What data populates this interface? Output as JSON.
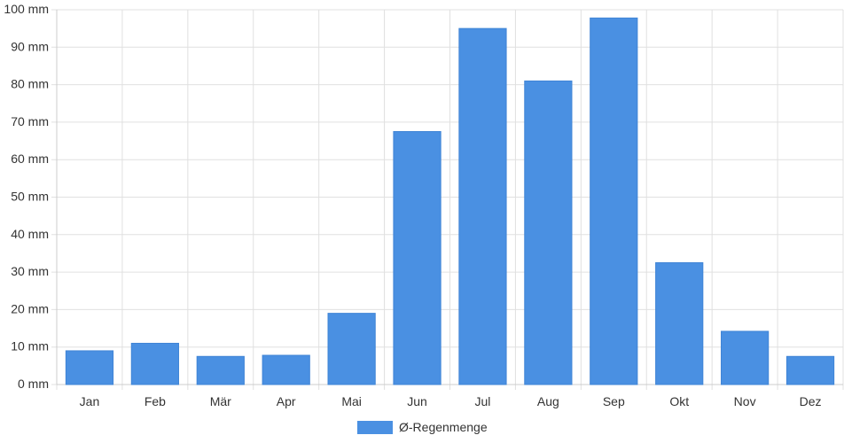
{
  "chart_data": {
    "type": "bar",
    "categories": [
      "Jan",
      "Feb",
      "Mär",
      "Apr",
      "Mai",
      "Jun",
      "Jul",
      "Aug",
      "Sep",
      "Okt",
      "Nov",
      "Dez"
    ],
    "series": [
      {
        "name": "Ø-Regenmenge",
        "values": [
          9,
          11,
          7.5,
          7.8,
          19,
          67.5,
          95,
          81,
          97.8,
          32.5,
          14.2,
          7.5
        ],
        "color": "#4a90e2"
      }
    ],
    "ylim": [
      0,
      100
    ],
    "y_ticks": [
      "0 mm",
      "10 mm",
      "20 mm",
      "30 mm",
      "40 mm",
      "50 mm",
      "60 mm",
      "70 mm",
      "80 mm",
      "90 mm",
      "100 mm"
    ],
    "y_tick_values": [
      0,
      10,
      20,
      30,
      40,
      50,
      60,
      70,
      80,
      90,
      100
    ],
    "grid": true,
    "legend_position": "bottom-center",
    "colors": {
      "grid": "#e0e0e0",
      "axis": "#cccccc",
      "text": "#333333"
    }
  }
}
